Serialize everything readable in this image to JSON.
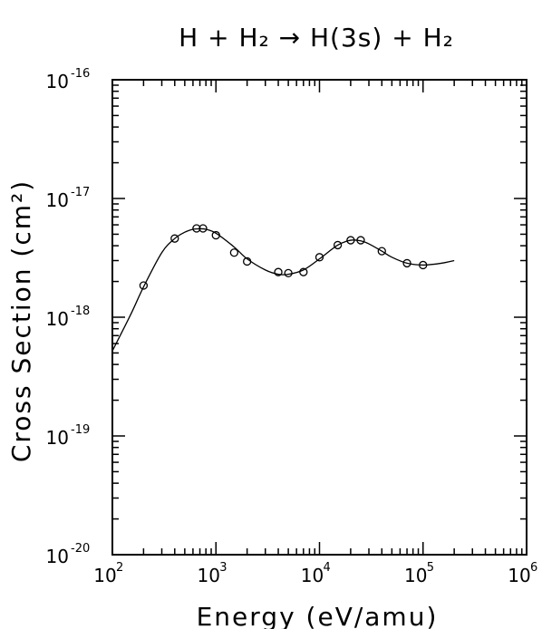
{
  "chart_data": {
    "type": "scatter",
    "title": "H + H₂ → H(3s) + H₂",
    "xlabel": "Energy (eV/amu)",
    "ylabel": "Cross Section (cm²)",
    "xscale": "log",
    "yscale": "log",
    "xlim": [
      100,
      1000000
    ],
    "ylim": [
      1e-20,
      1e-16
    ],
    "x_tick_labels": [
      {
        "base": "10",
        "exp": "2"
      },
      {
        "base": "10",
        "exp": "3"
      },
      {
        "base": "10",
        "exp": "4"
      },
      {
        "base": "10",
        "exp": "5"
      },
      {
        "base": "10",
        "exp": "6"
      }
    ],
    "y_tick_labels": [
      {
        "base": "10",
        "exp": "-20"
      },
      {
        "base": "10",
        "exp": "-19"
      },
      {
        "base": "10",
        "exp": "-18"
      },
      {
        "base": "10",
        "exp": "-17"
      },
      {
        "base": "10",
        "exp": "-16"
      }
    ],
    "grid": false,
    "series": [
      {
        "style": "markers",
        "marker": "open-circle",
        "x": [
          200,
          400,
          650,
          750,
          1000,
          1500,
          2000,
          4000,
          5000,
          7000,
          10000,
          15000,
          20000,
          25000,
          40000,
          70000,
          100000
        ],
        "y": [
          1.85e-18,
          4.6e-18,
          5.6e-18,
          5.6e-18,
          4.9e-18,
          3.5e-18,
          2.95e-18,
          2.4e-18,
          2.35e-18,
          2.4e-18,
          3.2e-18,
          4.05e-18,
          4.45e-18,
          4.45e-18,
          3.6e-18,
          2.85e-18,
          2.75e-18
        ]
      },
      {
        "style": "line",
        "x": [
          100,
          150,
          200,
          300,
          400,
          500,
          600,
          700,
          800,
          1000,
          1500,
          2000,
          3000,
          4000,
          5000,
          7000,
          10000,
          15000,
          20000,
          25000,
          30000,
          40000,
          50000,
          70000,
          100000,
          150000,
          200000
        ],
        "y": [
          5.2e-19,
          1.05e-18,
          1.8e-18,
          3.5e-18,
          4.6e-18,
          5.2e-18,
          5.5e-18,
          5.55e-18,
          5.5e-18,
          5.1e-18,
          3.9e-18,
          3.1e-18,
          2.5e-18,
          2.3e-18,
          2.3e-18,
          2.5e-18,
          3.1e-18,
          4.05e-18,
          4.45e-18,
          4.4e-18,
          4.15e-18,
          3.6e-18,
          3.2e-18,
          2.85e-18,
          2.75e-18,
          2.85e-18,
          3e-18
        ]
      }
    ]
  },
  "colors": {
    "ink": "#000000",
    "background": "#ffffff"
  }
}
